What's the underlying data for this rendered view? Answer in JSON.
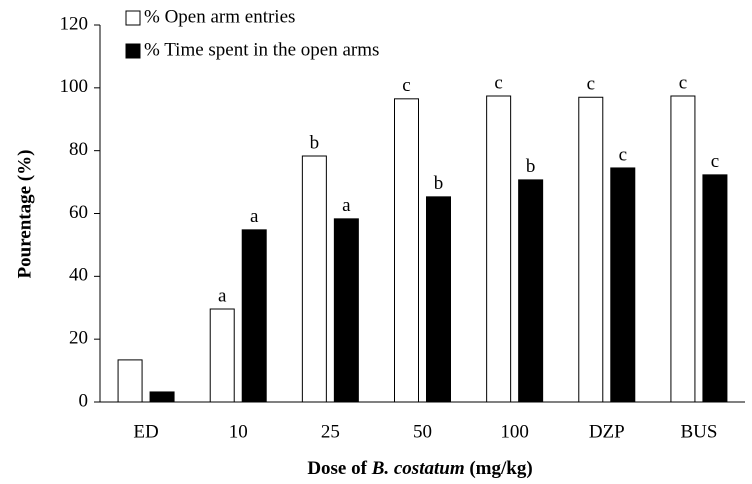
{
  "chart_data": {
    "type": "bar",
    "ylabel": "Pourentage (%)",
    "xlabel": [
      "Dose of ",
      "B. costatum",
      " (mg/kg)"
    ],
    "xlabel_italic": [
      false,
      true,
      false
    ],
    "categories": [
      "ED",
      "10",
      "25",
      "50",
      "100",
      "DZP",
      "BUS"
    ],
    "series": [
      {
        "name": "% Open arm entries",
        "color": "#ffffff",
        "values": [
          13.4,
          29.6,
          78.3,
          96.5,
          97.4,
          97,
          97.4
        ],
        "labels": [
          null,
          "a",
          "b",
          "c",
          "c",
          "c",
          "c"
        ]
      },
      {
        "name": "% Time spent in the open arms",
        "color": "#000000",
        "values": [
          3.2,
          54.8,
          58.3,
          65.3,
          70.7,
          74.5,
          72.3
        ],
        "labels": [
          null,
          "a",
          "a",
          "b",
          "b",
          "c",
          "c"
        ]
      }
    ],
    "ylim": [
      0,
      120
    ],
    "yticks": [
      0,
      20,
      40,
      60,
      80,
      100,
      120
    ],
    "grid": false,
    "legend": "top-left"
  }
}
